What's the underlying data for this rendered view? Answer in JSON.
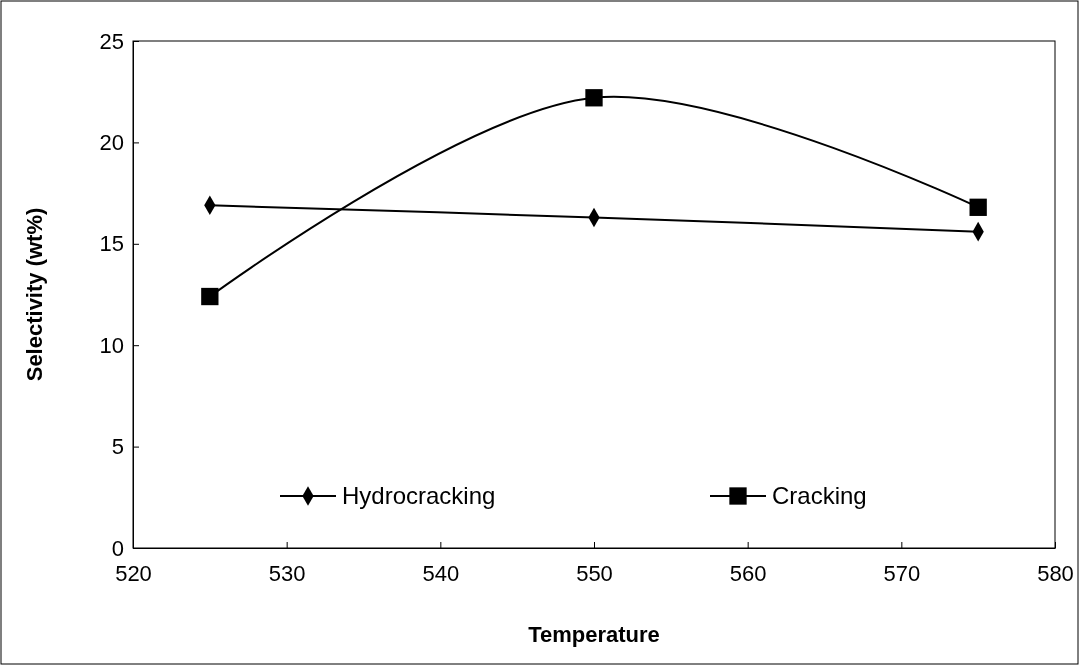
{
  "chart_data": {
    "type": "line",
    "xlabel": "Temperature",
    "ylabel": "Selectivity (wt%)",
    "x": [
      525,
      550,
      575
    ],
    "series": [
      {
        "name": "Hydrocracking",
        "color": "#000000",
        "marker": "diamond",
        "values": [
          16.9,
          16.3,
          15.6
        ]
      },
      {
        "name": "Cracking",
        "color": "#000000",
        "marker": "square",
        "values": [
          12.4,
          22.2,
          16.8
        ]
      }
    ],
    "xlim": [
      520,
      580
    ],
    "xticks": [
      520,
      530,
      540,
      550,
      560,
      570,
      580
    ],
    "ylim": [
      0,
      25
    ],
    "yticks": [
      0,
      5,
      10,
      15,
      20,
      25
    ],
    "grid": false,
    "legend": "bottom",
    "line_style": "solid"
  }
}
